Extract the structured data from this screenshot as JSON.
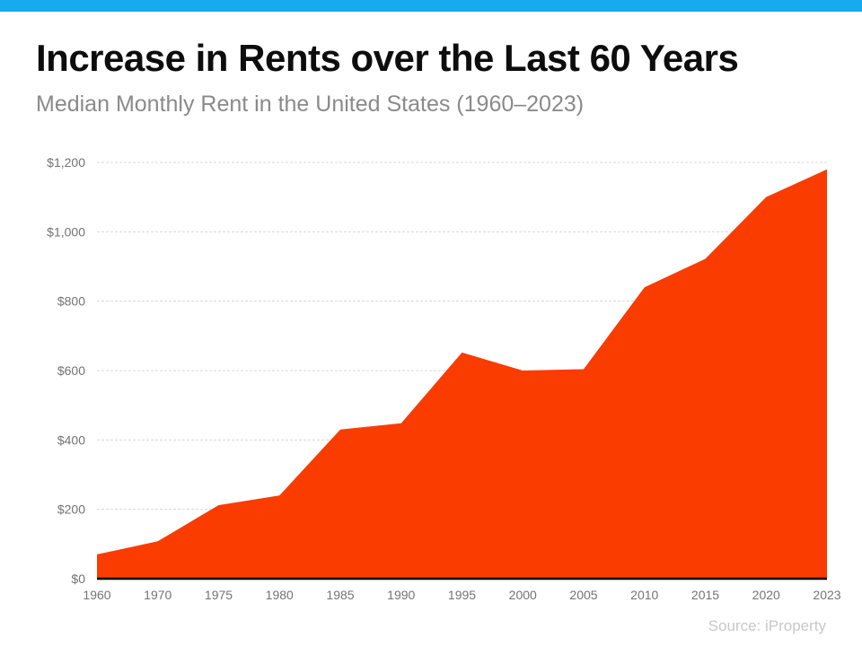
{
  "page": {
    "accent_bar_color": "#17aaec"
  },
  "header": {
    "title": "Increase in Rents over the Last 60 Years",
    "subtitle": "Median Monthly Rent in the United States (1960–2023)"
  },
  "chart_data": {
    "type": "area",
    "title": "Increase in Rents over the Last 60 Years",
    "subtitle": "Median Monthly Rent in the United States (1960–2023)",
    "categories": [
      "1960",
      "1970",
      "1975",
      "1980",
      "1985",
      "1990",
      "1995",
      "2000",
      "2005",
      "2010",
      "2015",
      "2020",
      "2023"
    ],
    "values": [
      70,
      108,
      212,
      240,
      430,
      448,
      652,
      600,
      604,
      840,
      922,
      1100,
      1180
    ],
    "xlabel": "",
    "ylabel": "",
    "ylim": [
      0,
      1200
    ],
    "y_tick_step": 200,
    "y_tick_labels": [
      "$0",
      "$200",
      "$400",
      "$600",
      "$800",
      "$1,000",
      "$1,200"
    ],
    "grid": true,
    "gridline_style": "dashed",
    "legend": "none",
    "area_color": "#fa3c00",
    "axis_line_color": "#000000",
    "gridline_color": "#d8d8d8",
    "tick_label_color": "#737373"
  },
  "footer": {
    "source_label": "Source: iProperty"
  }
}
